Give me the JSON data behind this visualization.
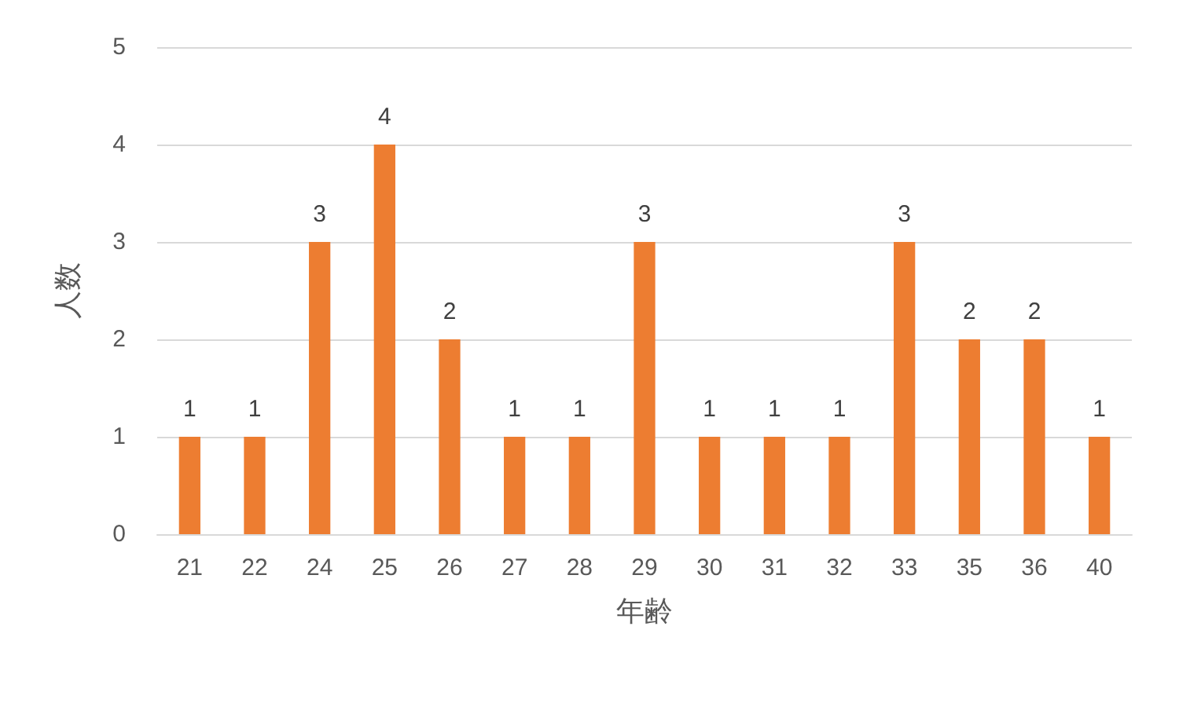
{
  "chart_data": {
    "type": "bar",
    "xlabel": "年齢",
    "ylabel": "人数",
    "categories": [
      "21",
      "22",
      "24",
      "25",
      "26",
      "27",
      "28",
      "29",
      "30",
      "31",
      "32",
      "33",
      "35",
      "36",
      "40"
    ],
    "values": [
      1,
      1,
      3,
      4,
      2,
      1,
      1,
      3,
      1,
      1,
      1,
      3,
      2,
      2,
      1
    ],
    "color": "#ed7d31",
    "ylim": [
      0,
      5
    ],
    "yticks": [
      0,
      1,
      2,
      3,
      4,
      5
    ],
    "grid": "y",
    "data_labels": true
  }
}
